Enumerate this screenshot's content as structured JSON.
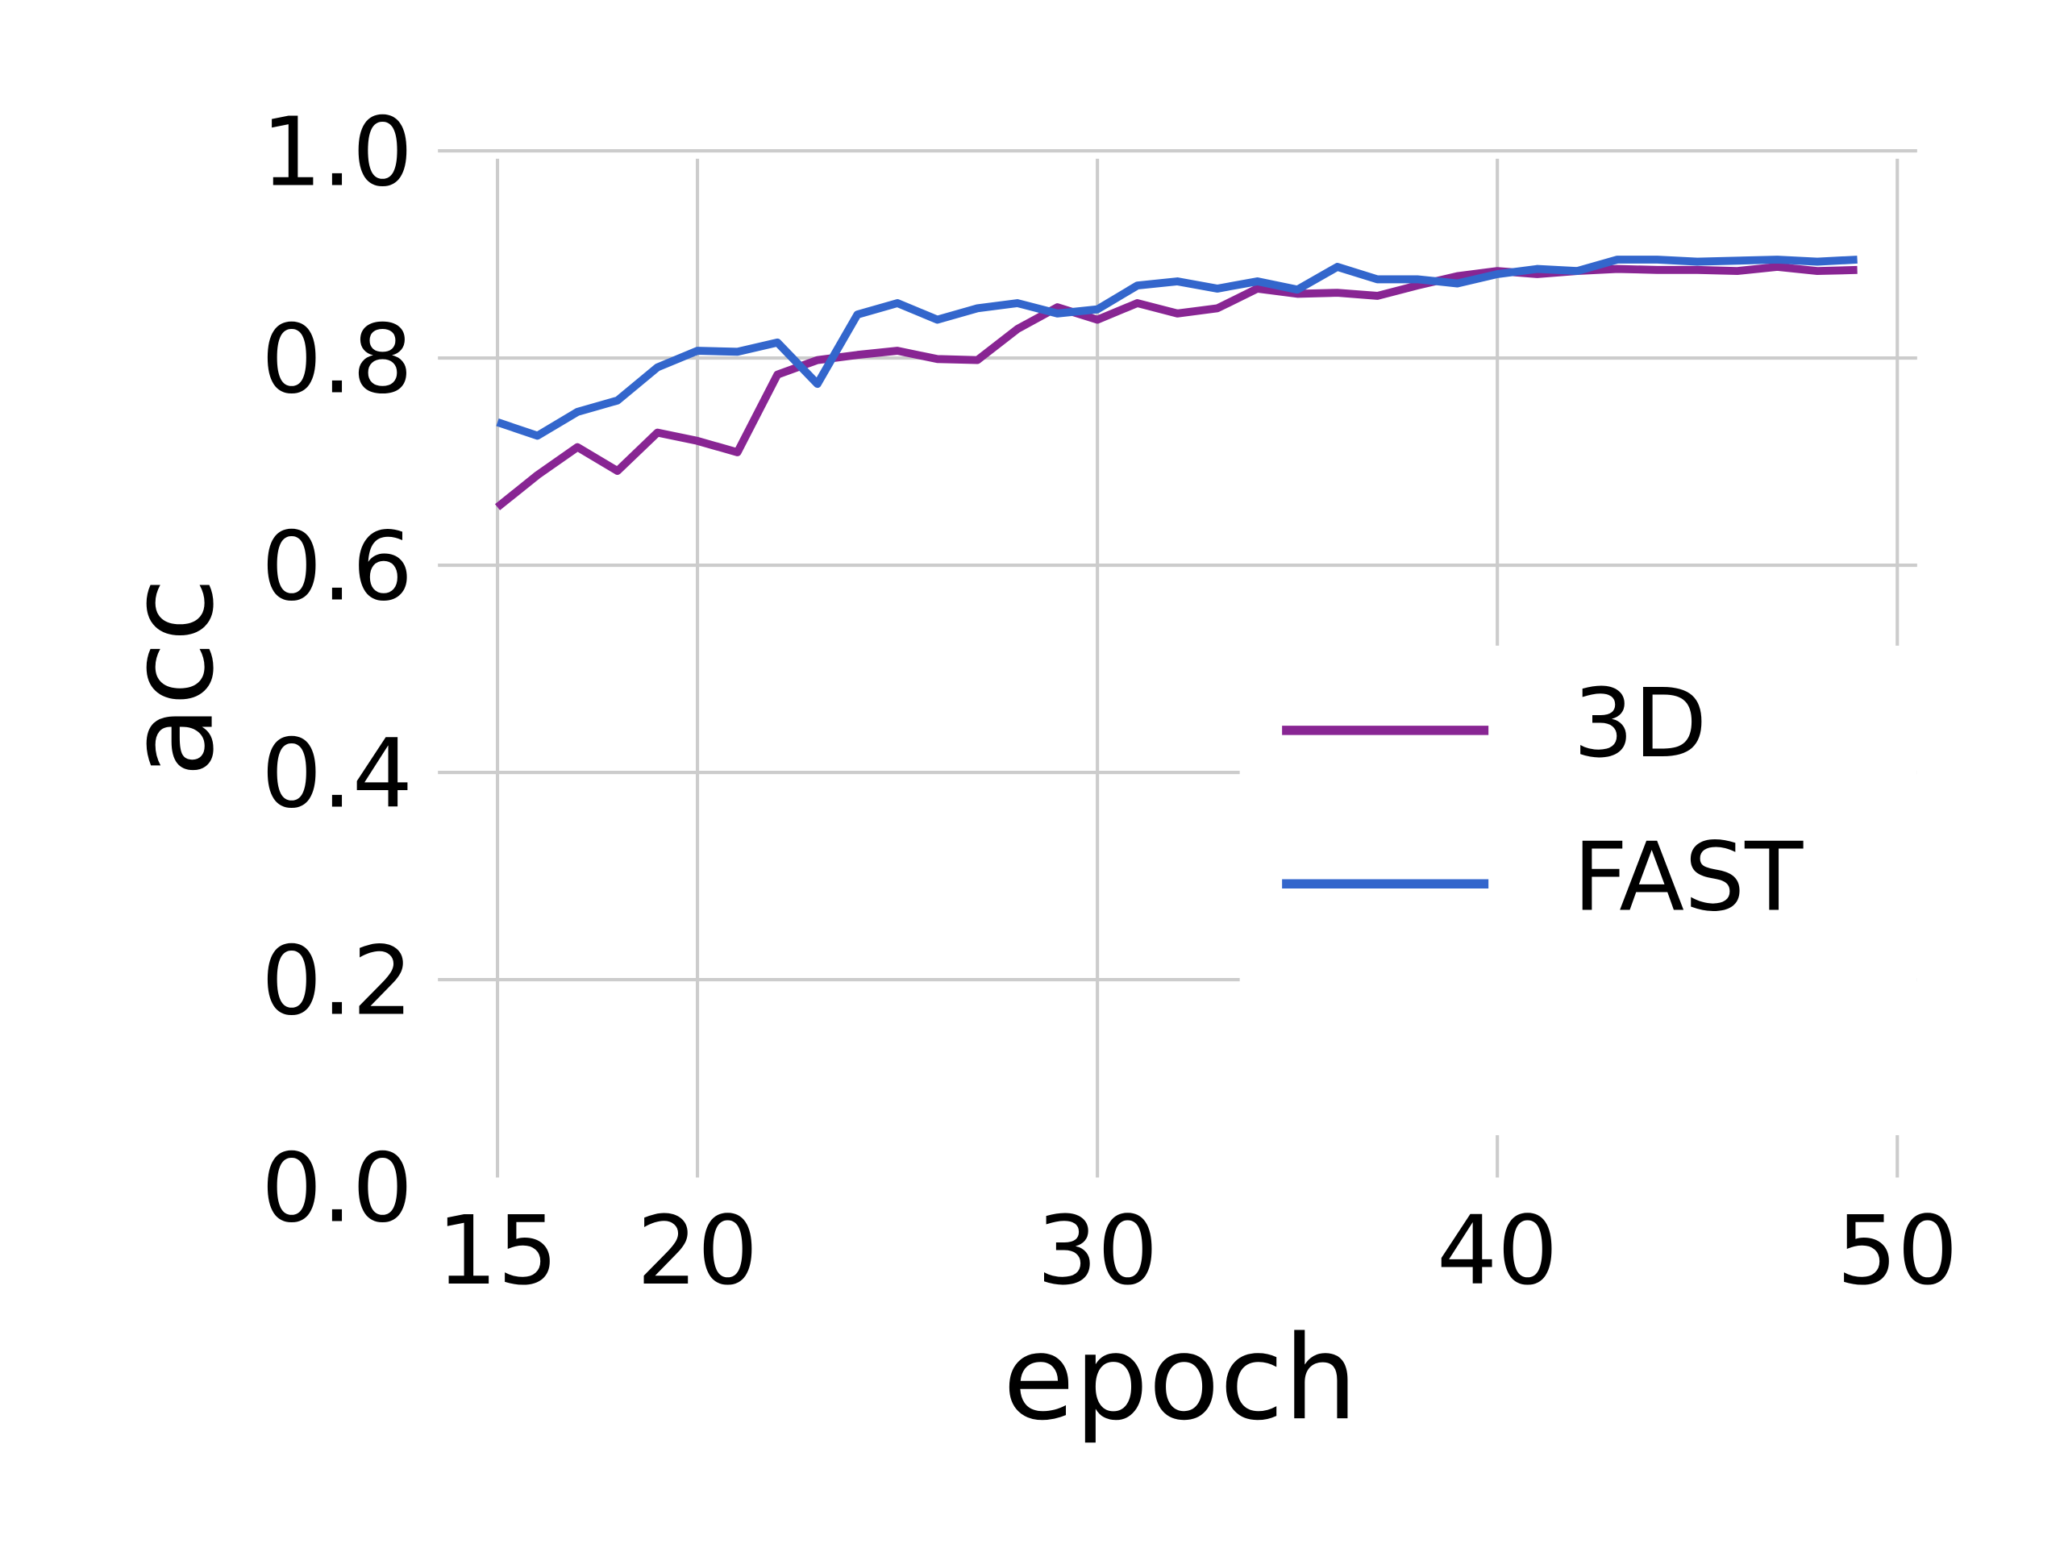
{
  "chart_data": {
    "type": "line",
    "xlabel": "epoch",
    "ylabel": "acc",
    "x": [
      15,
      16,
      17,
      18,
      19,
      20,
      21,
      22,
      23,
      24,
      25,
      26,
      27,
      28,
      29,
      30,
      31,
      32,
      33,
      34,
      35,
      36,
      37,
      38,
      39,
      40,
      41,
      42,
      43,
      44,
      45,
      46,
      47,
      48,
      49
    ],
    "series": [
      {
        "name": "3D",
        "color": "#882593",
        "values": [
          0.656,
          0.687,
          0.714,
          0.691,
          0.728,
          0.72,
          0.709,
          0.784,
          0.798,
          0.803,
          0.807,
          0.799,
          0.798,
          0.828,
          0.849,
          0.837,
          0.853,
          0.843,
          0.848,
          0.867,
          0.862,
          0.863,
          0.86,
          0.87,
          0.879,
          0.884,
          0.881,
          0.884,
          0.886,
          0.885,
          0.885,
          0.884,
          0.888,
          0.884,
          0.885
        ]
      },
      {
        "name": "FAST",
        "color": "#3366cc",
        "values": [
          0.738,
          0.725,
          0.748,
          0.759,
          0.791,
          0.807,
          0.806,
          0.815,
          0.775,
          0.842,
          0.853,
          0.837,
          0.848,
          0.853,
          0.843,
          0.847,
          0.87,
          0.874,
          0.867,
          0.874,
          0.866,
          0.888,
          0.876,
          0.876,
          0.872,
          0.881,
          0.886,
          0.884,
          0.895,
          0.895,
          0.893,
          0.894,
          0.895,
          0.893,
          0.895
        ]
      }
    ],
    "xlim": [
      15,
      50
    ],
    "xticks": [
      15,
      20,
      30,
      40,
      50
    ],
    "ylim": [
      0,
      1
    ],
    "yticks": [
      {
        "value": 0,
        "label": "0.0"
      },
      0.2,
      0.4,
      0.6,
      0.8,
      {
        "value": 1,
        "label": "1.0"
      }
    ],
    "grid": true,
    "legend": "lower right"
  }
}
